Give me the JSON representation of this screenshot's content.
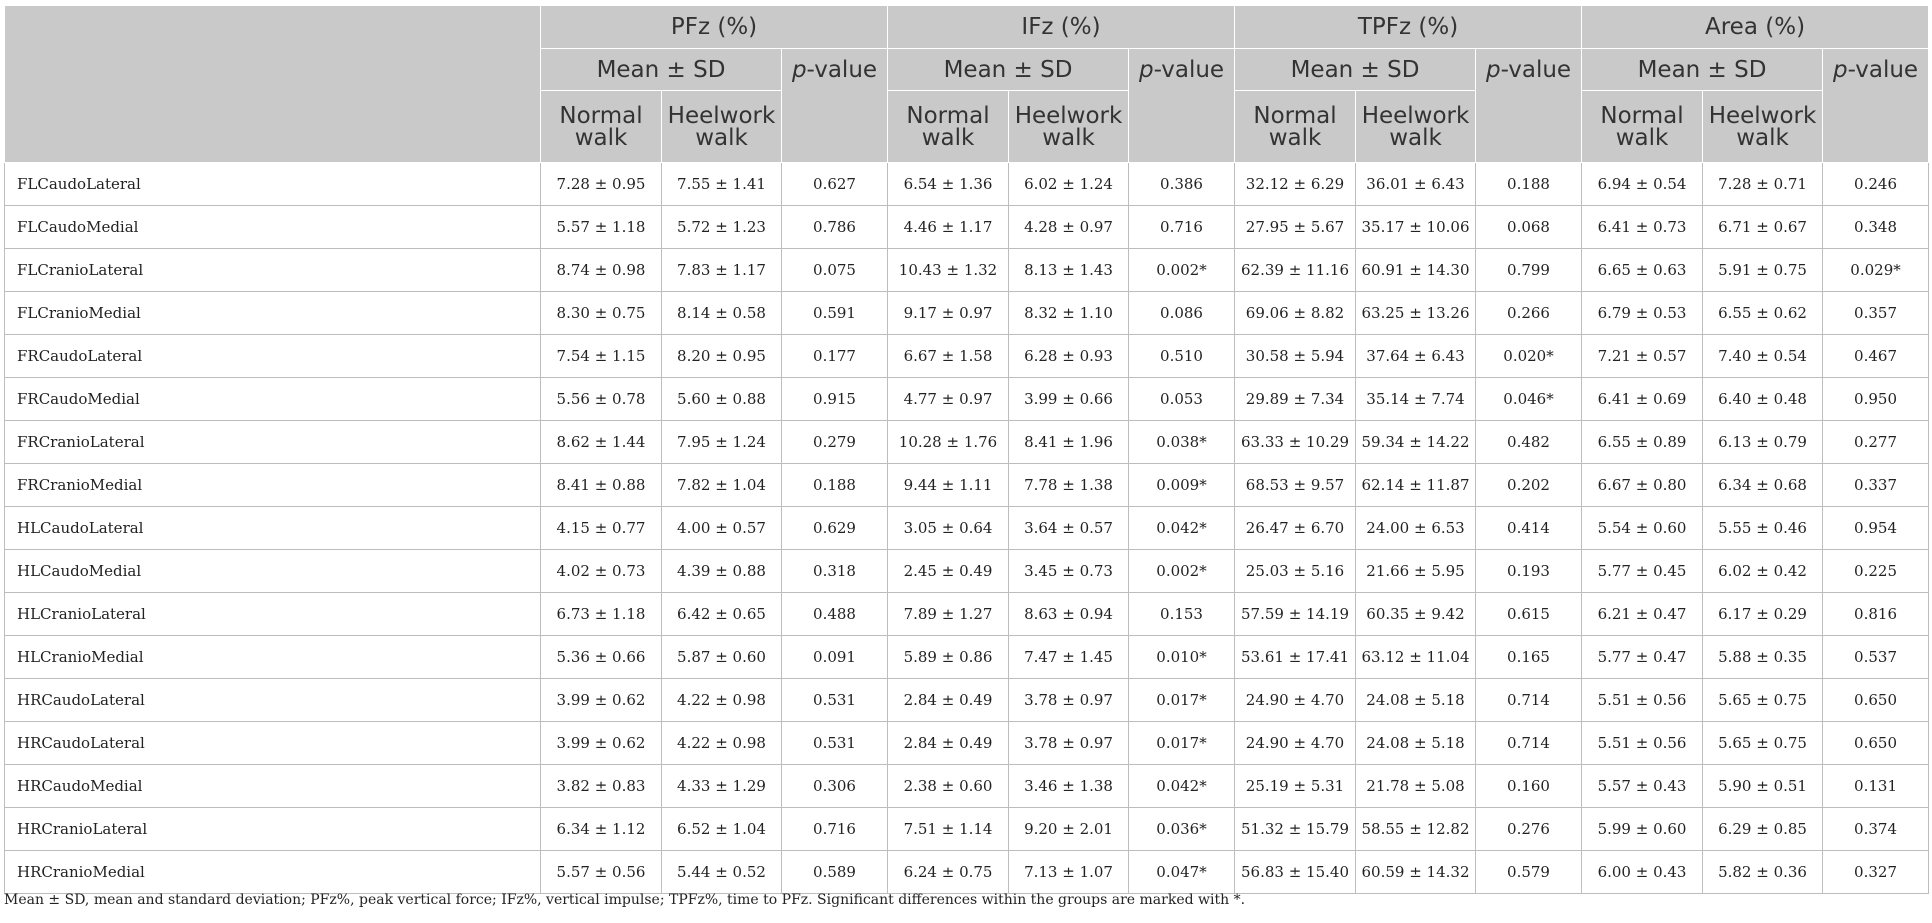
{
  "table": {
    "groups": [
      {
        "title": "PFz (%)"
      },
      {
        "title": "IFz (%)"
      },
      {
        "title": "TPFz (%)"
      },
      {
        "title": "Area (%)"
      }
    ],
    "mean_sd_label": "Mean ± SD",
    "p_prefix": "p",
    "p_suffix": "-value",
    "normal_line1": "Normal",
    "normal_line2": "walk",
    "heel_line1": "Heelwork",
    "heel_line2": "walk",
    "rows": [
      {
        "label": "FLCaudoLateral",
        "cells": [
          "7.28 ± 0.95",
          "7.55 ± 1.41",
          "0.627",
          "6.54 ± 1.36",
          "6.02 ± 1.24",
          "0.386",
          "32.12 ± 6.29",
          "36.01 ± 6.43",
          "0.188",
          "6.94 ± 0.54",
          "7.28 ± 0.71",
          "0.246"
        ]
      },
      {
        "label": "FLCaudoMedial",
        "cells": [
          "5.57 ± 1.18",
          "5.72 ± 1.23",
          "0.786",
          "4.46 ± 1.17",
          "4.28 ± 0.97",
          "0.716",
          "27.95 ± 5.67",
          "35.17 ± 10.06",
          "0.068",
          "6.41 ± 0.73",
          "6.71 ± 0.67",
          "0.348"
        ]
      },
      {
        "label": "FLCranioLateral",
        "cells": [
          "8.74 ± 0.98",
          "7.83 ± 1.17",
          "0.075",
          "10.43 ± 1.32",
          "8.13 ± 1.43",
          "0.002*",
          "62.39 ± 11.16",
          "60.91 ± 14.30",
          "0.799",
          "6.65 ± 0.63",
          "5.91 ± 0.75",
          "0.029*"
        ]
      },
      {
        "label": "FLCranioMedial",
        "cells": [
          "8.30 ± 0.75",
          "8.14 ± 0.58",
          "0.591",
          "9.17 ± 0.97",
          "8.32 ± 1.10",
          "0.086",
          "69.06 ± 8.82",
          "63.25 ± 13.26",
          "0.266",
          "6.79 ± 0.53",
          "6.55 ± 0.62",
          "0.357"
        ]
      },
      {
        "label": "FRCaudoLateral",
        "cells": [
          "7.54 ± 1.15",
          "8.20 ± 0.95",
          "0.177",
          "6.67 ± 1.58",
          "6.28 ± 0.93",
          "0.510",
          "30.58 ± 5.94",
          "37.64 ± 6.43",
          "0.020*",
          "7.21 ± 0.57",
          "7.40 ± 0.54",
          "0.467"
        ]
      },
      {
        "label": "FRCaudoMedial",
        "cells": [
          "5.56 ± 0.78",
          "5.60 ± 0.88",
          "0.915",
          "4.77 ± 0.97",
          "3.99 ± 0.66",
          "0.053",
          "29.89 ± 7.34",
          "35.14 ± 7.74",
          "0.046*",
          "6.41 ± 0.69",
          "6.40 ± 0.48",
          "0.950"
        ]
      },
      {
        "label": "FRCranioLateral",
        "cells": [
          "8.62 ± 1.44",
          "7.95 ± 1.24",
          "0.279",
          "10.28 ± 1.76",
          "8.41 ± 1.96",
          "0.038*",
          "63.33 ± 10.29",
          "59.34 ± 14.22",
          "0.482",
          "6.55 ± 0.89",
          "6.13 ± 0.79",
          "0.277"
        ]
      },
      {
        "label": "FRCranioMedial",
        "cells": [
          "8.41 ± 0.88",
          "7.82 ± 1.04",
          "0.188",
          "9.44 ± 1.11",
          "7.78 ± 1.38",
          "0.009*",
          "68.53 ± 9.57",
          "62.14 ± 11.87",
          "0.202",
          "6.67 ± 0.80",
          "6.34 ± 0.68",
          "0.337"
        ]
      },
      {
        "label": "HLCaudoLateral",
        "cells": [
          "4.15 ± 0.77",
          "4.00 ± 0.57",
          "0.629",
          "3.05 ± 0.64",
          "3.64 ± 0.57",
          "0.042*",
          "26.47 ± 6.70",
          "24.00 ± 6.53",
          "0.414",
          "5.54 ± 0.60",
          "5.55 ± 0.46",
          "0.954"
        ]
      },
      {
        "label": "HLCaudoMedial",
        "cells": [
          "4.02 ± 0.73",
          "4.39 ± 0.88",
          "0.318",
          "2.45 ± 0.49",
          "3.45 ± 0.73",
          "0.002*",
          "25.03 ± 5.16",
          "21.66 ± 5.95",
          "0.193",
          "5.77 ± 0.45",
          "6.02 ± 0.42",
          "0.225"
        ]
      },
      {
        "label": "HLCranioLateral",
        "cells": [
          "6.73 ± 1.18",
          "6.42 ± 0.65",
          "0.488",
          "7.89 ± 1.27",
          "8.63 ± 0.94",
          "0.153",
          "57.59 ± 14.19",
          "60.35 ± 9.42",
          "0.615",
          "6.21 ± 0.47",
          "6.17 ± 0.29",
          "0.816"
        ]
      },
      {
        "label": "HLCranioMedial",
        "cells": [
          "5.36 ± 0.66",
          "5.87 ± 0.60",
          "0.091",
          "5.89 ± 0.86",
          "7.47 ± 1.45",
          "0.010*",
          "53.61 ± 17.41",
          "63.12 ± 11.04",
          "0.165",
          "5.77 ± 0.47",
          "5.88 ± 0.35",
          "0.537"
        ]
      },
      {
        "label": "HRCaudoLateral",
        "cells": [
          "3.99 ± 0.62",
          "4.22 ± 0.98",
          "0.531",
          "2.84 ± 0.49",
          "3.78 ± 0.97",
          "0.017*",
          "24.90 ± 4.70",
          "24.08 ± 5.18",
          "0.714",
          "5.51 ± 0.56",
          "5.65 ± 0.75",
          "0.650"
        ]
      },
      {
        "label": "HRCaudoLateral",
        "cells": [
          "3.99 ± 0.62",
          "4.22 ± 0.98",
          "0.531",
          "2.84 ± 0.49",
          "3.78 ± 0.97",
          "0.017*",
          "24.90 ± 4.70",
          "24.08 ± 5.18",
          "0.714",
          "5.51 ± 0.56",
          "5.65 ± 0.75",
          "0.650"
        ]
      },
      {
        "label": "HRCaudoMedial",
        "cells": [
          "3.82 ± 0.83",
          "4.33 ± 1.29",
          "0.306",
          "2.38 ± 0.60",
          "3.46 ± 1.38",
          "0.042*",
          "25.19 ± 5.31",
          "21.78 ± 5.08",
          "0.160",
          "5.57 ± 0.43",
          "5.90 ± 0.51",
          "0.131"
        ]
      },
      {
        "label": "HRCranioLateral",
        "cells": [
          "6.34 ± 1.12",
          "6.52 ± 1.04",
          "0.716",
          "7.51 ± 1.14",
          "9.20 ± 2.01",
          "0.036*",
          "51.32 ± 15.79",
          "58.55 ± 12.82",
          "0.276",
          "5.99 ± 0.60",
          "6.29 ± 0.85",
          "0.374"
        ]
      },
      {
        "label": "HRCranioMedial",
        "cells": [
          "5.57 ± 0.56",
          "5.44 ± 0.52",
          "0.589",
          "6.24 ± 0.75",
          "7.13 ± 1.07",
          "0.047*",
          "56.83 ± 15.40",
          "60.59 ± 14.32",
          "0.579",
          "6.00 ± 0.43",
          "5.82 ± 0.36",
          "0.327"
        ]
      }
    ]
  },
  "footnote": "Mean ± SD, mean and standard deviation; PFz%, peak vertical force; IFz%, vertical impulse; TPFz%, time to PFz. Significant differences within the groups are marked with *."
}
